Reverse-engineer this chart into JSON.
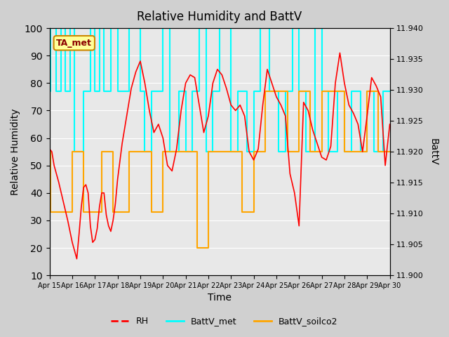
{
  "title": "Relative Humidity and BattV",
  "xlabel": "Time",
  "ylabel_left": "Relative Humidity",
  "ylabel_right": "BattV",
  "xlim": [
    0,
    15
  ],
  "ylim_left": [
    10,
    100
  ],
  "ylim_right": [
    11.9,
    11.94
  ],
  "yticks_left": [
    10,
    20,
    30,
    40,
    50,
    60,
    70,
    80,
    90,
    100
  ],
  "yticks_right": [
    11.9,
    11.905,
    11.91,
    11.915,
    11.92,
    11.925,
    11.93,
    11.935,
    11.94
  ],
  "xtick_labels": [
    "Apr 15",
    "Apr 16",
    "Apr 17",
    "Apr 18",
    "Apr 19",
    "Apr 20",
    "Apr 21",
    "Apr 22",
    "Apr 23",
    "Apr 24",
    "Apr 25",
    "Apr 26",
    "Apr 27",
    "Apr 28",
    "Apr 29",
    "Apr 30"
  ],
  "bg_color": "#e8e8e8",
  "plot_bg_color": "#f0f0f0",
  "annotation_text": "TA_met",
  "annotation_bg": "#ffff99",
  "annotation_border": "#cc8800",
  "annotation_text_color": "#8b0000",
  "rh_color": "#ff0000",
  "battv_met_color": "#00ffff",
  "battv_soilco2_color": "#ffa500",
  "legend_rh_label": "RH",
  "legend_met_label": "BattV_met",
  "legend_soilco2_label": "BattV_soilco2",
  "rh_data_x": [
    0,
    0.1,
    0.2,
    0.4,
    0.6,
    0.8,
    1.0,
    1.1,
    1.2,
    1.3,
    1.4,
    1.5,
    1.6,
    1.7,
    1.8,
    1.9,
    2.0,
    2.1,
    2.2,
    2.3,
    2.4,
    2.5,
    2.6,
    2.7,
    2.8,
    2.9,
    3.0,
    3.2,
    3.4,
    3.6,
    3.8,
    4.0,
    4.2,
    4.4,
    4.6,
    4.8,
    5.0,
    5.2,
    5.4,
    5.6,
    5.8,
    6.0,
    6.2,
    6.4,
    6.6,
    6.8,
    7.0,
    7.2,
    7.4,
    7.6,
    7.8,
    8.0,
    8.2,
    8.4,
    8.6,
    8.8,
    9.0,
    9.2,
    9.4,
    9.6,
    9.8,
    10.0,
    10.2,
    10.4,
    10.6,
    10.8,
    11.0,
    11.2,
    11.4,
    11.6,
    11.8,
    12.0,
    12.2,
    12.4,
    12.6,
    12.8,
    13.0,
    13.2,
    13.4,
    13.6,
    13.8,
    14.0,
    14.2,
    14.4,
    14.6,
    14.8,
    15.0
  ],
  "rh_data_y": [
    56,
    55,
    50,
    44,
    37,
    30,
    22,
    19,
    16,
    25,
    35,
    42,
    43,
    40,
    28,
    22,
    23,
    27,
    35,
    40,
    40,
    32,
    28,
    26,
    30,
    36,
    45,
    58,
    68,
    78,
    84,
    88,
    80,
    70,
    62,
    65,
    60,
    50,
    48,
    56,
    70,
    80,
    83,
    82,
    72,
    62,
    68,
    80,
    85,
    83,
    78,
    72,
    70,
    72,
    68,
    55,
    52,
    56,
    72,
    85,
    80,
    75,
    72,
    68,
    47,
    40,
    28,
    73,
    70,
    63,
    58,
    53,
    52,
    57,
    80,
    91,
    80,
    72,
    69,
    65,
    55,
    68,
    82,
    79,
    75,
    50,
    65
  ],
  "met_steps_x": [
    0,
    0.05,
    0.05,
    0.3,
    0.3,
    0.5,
    0.5,
    0.7,
    0.7,
    0.9,
    0.9,
    1.1,
    1.1,
    1.5,
    1.5,
    1.8,
    1.8,
    2.0,
    2.0,
    2.2,
    2.2,
    2.4,
    2.4,
    2.7,
    2.7,
    3.0,
    3.0,
    3.5,
    3.5,
    4.0,
    4.0,
    4.2,
    4.2,
    4.5,
    4.5,
    5.0,
    5.0,
    5.3,
    5.3,
    5.7,
    5.7,
    6.0,
    6.0,
    6.3,
    6.3,
    6.6,
    6.6,
    6.9,
    6.9,
    7.2,
    7.2,
    7.5,
    7.5,
    8.0,
    8.0,
    8.3,
    8.3,
    8.7,
    8.7,
    9.0,
    9.0,
    9.3,
    9.3,
    9.7,
    9.7,
    10.1,
    10.1,
    10.4,
    10.4,
    10.7,
    10.7,
    11.0,
    11.0,
    11.3,
    11.3,
    11.7,
    11.7,
    12.0,
    12.0,
    12.3,
    12.3,
    12.7,
    12.7,
    13.0,
    13.0,
    13.3,
    13.3,
    13.7,
    13.7,
    14.0,
    14.0,
    14.3,
    14.3,
    14.7,
    14.7,
    15.0
  ],
  "met_steps_y": [
    77,
    77,
    100,
    100,
    77,
    77,
    100,
    100,
    77,
    77,
    100,
    100,
    55,
    55,
    77,
    77,
    100,
    100,
    77,
    77,
    100,
    100,
    77,
    77,
    100,
    100,
    77,
    77,
    100,
    100,
    77,
    77,
    55,
    55,
    77,
    77,
    100,
    100,
    55,
    55,
    77,
    77,
    55,
    55,
    77,
    77,
    100,
    100,
    55,
    55,
    77,
    77,
    100,
    100,
    55,
    55,
    77,
    77,
    55,
    55,
    77,
    77,
    100,
    100,
    77,
    77,
    55,
    55,
    77,
    77,
    100,
    100,
    77,
    77,
    55,
    55,
    100,
    100,
    77,
    77,
    55,
    55,
    77,
    77,
    55,
    55,
    77,
    77,
    55,
    55,
    77,
    77,
    55,
    55,
    77,
    77
  ],
  "soilco2_steps_x": [
    0,
    0.05,
    0.05,
    1.0,
    1.0,
    1.5,
    1.5,
    2.3,
    2.3,
    2.8,
    2.8,
    3.5,
    3.5,
    4.5,
    4.5,
    5.0,
    5.0,
    6.5,
    6.5,
    7.0,
    7.0,
    8.5,
    8.5,
    9.0,
    9.0,
    9.5,
    9.5,
    10.5,
    10.5,
    11.0,
    11.0,
    11.5,
    11.5,
    12.0,
    12.0,
    13.0,
    13.0,
    14.0,
    14.0,
    14.5,
    14.5,
    15.0
  ],
  "soilco2_steps_y": [
    55,
    55,
    33,
    33,
    55,
    55,
    33,
    33,
    55,
    55,
    33,
    33,
    55,
    55,
    33,
    33,
    55,
    55,
    20,
    20,
    55,
    55,
    33,
    33,
    55,
    55,
    77,
    77,
    55,
    55,
    77,
    77,
    55,
    55,
    77,
    77,
    55,
    55,
    77,
    77,
    55,
    55
  ]
}
